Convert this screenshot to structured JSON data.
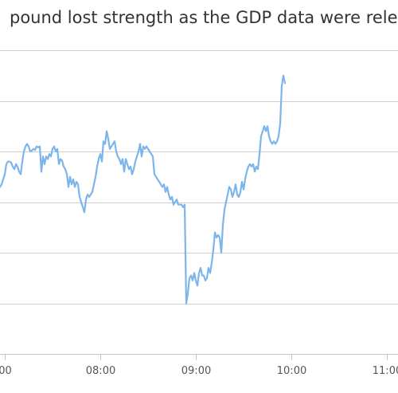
{
  "chart_data": {
    "type": "line",
    "title": "pound lost strength as the GDP data were relea",
    "xlabel": "",
    "ylabel": "",
    "x_tick_labels": [
      "00",
      "08:00",
      "09:00",
      "10:00",
      "11:00"
    ],
    "x_tick_minutes": [
      420,
      480,
      540,
      600,
      660
    ],
    "xlim_minutes": [
      417,
      667
    ],
    "ylim": [
      0,
      6
    ],
    "grid": "horizontal",
    "legend": "none",
    "line_color": "#7cb5ec",
    "series": [
      {
        "values": [
          [
            417,
            3.3
          ],
          [
            418,
            3.35
          ],
          [
            419,
            3.45
          ],
          [
            420,
            3.55
          ],
          [
            421,
            3.75
          ],
          [
            422,
            3.8
          ],
          [
            423,
            3.8
          ],
          [
            424,
            3.78
          ],
          [
            425,
            3.7
          ],
          [
            426,
            3.65
          ],
          [
            427,
            3.75
          ],
          [
            428,
            3.7
          ],
          [
            429,
            3.6
          ],
          [
            430,
            3.55
          ],
          [
            431,
            3.8
          ],
          [
            432,
            4.0
          ],
          [
            433,
            4.1
          ],
          [
            434,
            4.15
          ],
          [
            435,
            4.1
          ],
          [
            436,
            4.0
          ],
          [
            437,
            4.02
          ],
          [
            438,
            4.05
          ],
          [
            439,
            4.03
          ],
          [
            440,
            4.1
          ],
          [
            441,
            4.08
          ],
          [
            442,
            4.1
          ],
          [
            443,
            3.6
          ],
          [
            444,
            3.9
          ],
          [
            445,
            3.75
          ],
          [
            446,
            3.9
          ],
          [
            447,
            3.85
          ],
          [
            448,
            3.95
          ],
          [
            449,
            3.9
          ],
          [
            450,
            4.05
          ],
          [
            451,
            4.1
          ],
          [
            452,
            4.0
          ],
          [
            453,
            4.05
          ],
          [
            454,
            3.75
          ],
          [
            455,
            3.85
          ],
          [
            456,
            3.82
          ],
          [
            457,
            3.7
          ],
          [
            458,
            3.65
          ],
          [
            459,
            3.55
          ],
          [
            460,
            3.3
          ],
          [
            461,
            3.5
          ],
          [
            462,
            3.35
          ],
          [
            463,
            3.45
          ],
          [
            464,
            3.3
          ],
          [
            465,
            3.4
          ],
          [
            466,
            3.35
          ],
          [
            467,
            3.1
          ],
          [
            468,
            3.0
          ],
          [
            469,
            2.9
          ],
          [
            470,
            2.8
          ],
          [
            471,
            3.05
          ],
          [
            472,
            3.15
          ],
          [
            473,
            3.1
          ],
          [
            474,
            3.15
          ],
          [
            475,
            3.2
          ],
          [
            476,
            3.35
          ],
          [
            477,
            3.5
          ],
          [
            478,
            3.7
          ],
          [
            479,
            3.85
          ],
          [
            480,
            3.95
          ],
          [
            481,
            3.8
          ],
          [
            482,
            4.2
          ],
          [
            483,
            4.15
          ],
          [
            484,
            4.4
          ],
          [
            485,
            4.25
          ],
          [
            486,
            4.05
          ],
          [
            487,
            4.1
          ],
          [
            488,
            4.15
          ],
          [
            489,
            4.2
          ],
          [
            490,
            4.0
          ],
          [
            491,
            3.9
          ],
          [
            492,
            3.85
          ],
          [
            493,
            3.75
          ],
          [
            494,
            3.85
          ],
          [
            495,
            3.6
          ],
          [
            496,
            3.85
          ],
          [
            497,
            3.75
          ],
          [
            498,
            3.65
          ],
          [
            499,
            3.7
          ],
          [
            500,
            3.55
          ],
          [
            501,
            3.65
          ],
          [
            502,
            3.8
          ],
          [
            503,
            3.9
          ],
          [
            504,
            4.0
          ],
          [
            505,
            4.15
          ],
          [
            506,
            3.9
          ],
          [
            507,
            4.1
          ],
          [
            508,
            4.05
          ],
          [
            509,
            4.1
          ],
          [
            510,
            4.05
          ],
          [
            511,
            4.0
          ],
          [
            512,
            3.95
          ],
          [
            513,
            3.9
          ],
          [
            514,
            3.55
          ],
          [
            515,
            3.5
          ],
          [
            516,
            3.45
          ],
          [
            517,
            3.4
          ],
          [
            518,
            3.35
          ],
          [
            519,
            3.3
          ],
          [
            520,
            3.35
          ],
          [
            521,
            3.2
          ],
          [
            522,
            3.3
          ],
          [
            523,
            3.15
          ],
          [
            524,
            3.05
          ],
          [
            525,
            3.1
          ],
          [
            526,
            2.95
          ],
          [
            527,
            3.0
          ],
          [
            528,
            3.05
          ],
          [
            529,
            2.95
          ],
          [
            530,
            2.95
          ],
          [
            531,
            2.95
          ],
          [
            532,
            2.9
          ],
          [
            533,
            2.95
          ],
          [
            534,
            1.0
          ],
          [
            535,
            1.2
          ],
          [
            536,
            1.5
          ],
          [
            537,
            1.55
          ],
          [
            538,
            1.45
          ],
          [
            539,
            1.6
          ],
          [
            540,
            1.45
          ],
          [
            541,
            1.35
          ],
          [
            542,
            1.6
          ],
          [
            543,
            1.7
          ],
          [
            544,
            1.55
          ],
          [
            545,
            1.55
          ],
          [
            546,
            1.45
          ],
          [
            547,
            1.5
          ],
          [
            548,
            1.7
          ],
          [
            549,
            1.6
          ],
          [
            550,
            1.8
          ],
          [
            551,
            2.05
          ],
          [
            552,
            2.4
          ],
          [
            553,
            2.3
          ],
          [
            554,
            2.35
          ],
          [
            555,
            2.3
          ],
          [
            556,
            2.0
          ],
          [
            557,
            2.55
          ],
          [
            558,
            2.85
          ],
          [
            559,
            3.0
          ],
          [
            560,
            3.15
          ],
          [
            561,
            3.3
          ],
          [
            562,
            3.25
          ],
          [
            563,
            3.1
          ],
          [
            564,
            3.2
          ],
          [
            565,
            3.35
          ],
          [
            566,
            3.15
          ],
          [
            567,
            3.1
          ],
          [
            568,
            3.2
          ],
          [
            569,
            3.4
          ],
          [
            570,
            3.25
          ],
          [
            571,
            3.45
          ],
          [
            572,
            3.6
          ],
          [
            573,
            3.7
          ],
          [
            574,
            3.75
          ],
          [
            575,
            3.7
          ],
          [
            576,
            3.75
          ],
          [
            577,
            3.6
          ],
          [
            578,
            3.7
          ],
          [
            579,
            3.65
          ],
          [
            580,
            3.95
          ],
          [
            581,
            4.3
          ],
          [
            582,
            4.4
          ],
          [
            583,
            4.5
          ],
          [
            584,
            4.4
          ],
          [
            585,
            4.5
          ],
          [
            586,
            4.3
          ],
          [
            587,
            4.2
          ],
          [
            588,
            4.15
          ],
          [
            589,
            4.2
          ],
          [
            590,
            4.15
          ],
          [
            591,
            4.2
          ],
          [
            592,
            4.3
          ],
          [
            593,
            4.55
          ],
          [
            594,
            5.3
          ],
          [
            595,
            5.5
          ],
          [
            596,
            5.35
          ]
        ]
      }
    ]
  }
}
